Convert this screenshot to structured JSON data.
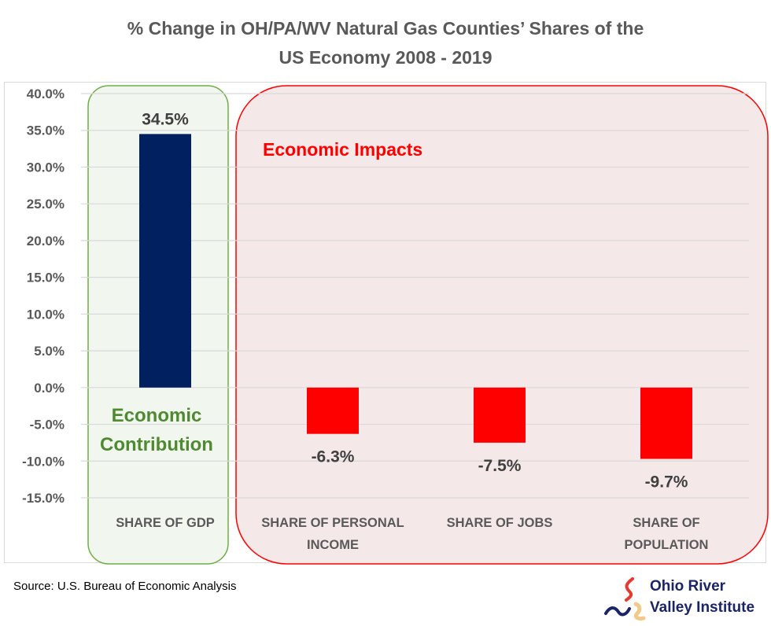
{
  "chart_data": {
    "type": "bar",
    "title_lines": [
      "% Change in OH/PA/WV Natural Gas Counties’ Shares of the",
      "US Economy 2008 - 2019"
    ],
    "categories": [
      [
        "SHARE OF GDP"
      ],
      [
        "SHARE OF PERSONAL",
        "INCOME"
      ],
      [
        "SHARE OF JOBS"
      ],
      [
        "SHARE OF",
        "POPULATION"
      ]
    ],
    "values": [
      34.5,
      -6.3,
      -7.5,
      -9.7
    ],
    "value_labels": [
      "34.5%",
      "-6.3%",
      "-7.5%",
      "-9.7%"
    ],
    "bar_colors": [
      "#002060",
      "#ff0000",
      "#ff0000",
      "#ff0000"
    ],
    "ylim": [
      -15,
      40
    ],
    "yticks": [
      40,
      35,
      30,
      25,
      20,
      15,
      10,
      5,
      0,
      -5,
      -10,
      -15
    ],
    "ytick_labels": [
      "40.0%",
      "35.0%",
      "30.0%",
      "25.0%",
      "20.0%",
      "15.0%",
      "10.0%",
      "5.0%",
      "0.0%",
      "-5.0%",
      "-10.0%",
      "-15.0%"
    ],
    "grid": true,
    "xlabel": "",
    "ylabel": "",
    "annotations": {
      "contribution": {
        "lines": [
          "Economic",
          "Contribution"
        ],
        "color": "#4f8a32",
        "box_fill": "#f1f6ee",
        "box_stroke": "#70ad47"
      },
      "impacts": {
        "text": "Economic Impacts",
        "color": "#ff0000",
        "box_fill": "#f5e8e8",
        "box_stroke": "#ff0000"
      }
    }
  },
  "footer": {
    "source": "Source: U.S. Bureau of Economic Analysis",
    "logo": {
      "line1": "Ohio River",
      "line2": "Valley Institute",
      "icon": "river-flame-icon"
    }
  }
}
